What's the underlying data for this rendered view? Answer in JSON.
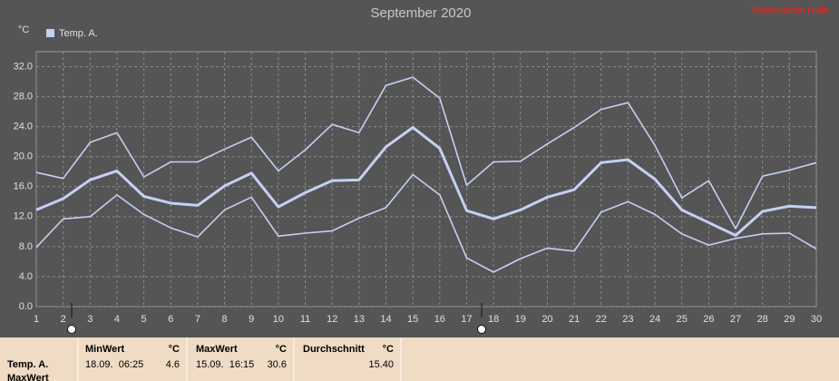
{
  "chart_data": {
    "type": "line",
    "title": "September 2020",
    "station": "Wetterstation Halle",
    "y_unit": "°C",
    "legend": "Temp. A.",
    "x": [
      1,
      2,
      3,
      4,
      5,
      6,
      7,
      8,
      9,
      10,
      11,
      12,
      13,
      14,
      15,
      16,
      17,
      18,
      19,
      20,
      21,
      22,
      23,
      24,
      25,
      26,
      27,
      28,
      29,
      30
    ],
    "xlim": [
      1,
      30
    ],
    "xticks": [
      1,
      2,
      3,
      4,
      5,
      6,
      7,
      8,
      9,
      10,
      11,
      12,
      13,
      14,
      15,
      16,
      17,
      18,
      19,
      20,
      21,
      22,
      23,
      24,
      25,
      26,
      27,
      28,
      29,
      30
    ],
    "ylim": [
      0,
      34
    ],
    "yticks": [
      {
        "value": 0,
        "label": "0.0"
      },
      {
        "value": 4,
        "label": "4.0"
      },
      {
        "value": 8,
        "label": "8.0"
      },
      {
        "value": 12,
        "label": "12.0"
      },
      {
        "value": 16,
        "label": "16.0"
      },
      {
        "value": 20,
        "label": "20.0"
      },
      {
        "value": 24,
        "label": "24.0"
      },
      {
        "value": 28,
        "label": "28.0"
      },
      {
        "value": 32,
        "label": "32.0"
      }
    ],
    "grid": true,
    "series": [
      {
        "color": "#c4d0f4",
        "width": 1.6,
        "values": [
          17.9,
          17.1,
          21.9,
          23.2,
          17.3,
          19.3,
          19.3,
          21.0,
          22.6,
          18.1,
          20.9,
          24.3,
          23.2,
          29.5,
          30.6,
          27.8,
          16.2,
          19.3,
          19.4,
          21.7,
          23.9,
          26.3,
          27.2,
          21.5,
          14.5,
          16.8,
          10.4,
          17.4,
          18.2,
          19.2
        ]
      },
      {
        "color": "#c4d0f4",
        "width": 3,
        "values": [
          12.9,
          14.4,
          16.9,
          18.1,
          14.7,
          13.8,
          13.5,
          16.1,
          17.8,
          13.3,
          15.2,
          16.8,
          16.9,
          21.3,
          23.9,
          21.1,
          12.8,
          11.7,
          12.9,
          14.6,
          15.6,
          19.2,
          19.6,
          17.0,
          12.9,
          11.2,
          9.5,
          12.7,
          13.4,
          13.2
        ]
      },
      {
        "color": "#c4d0f4",
        "width": 1.6,
        "values": [
          7.9,
          11.7,
          12.0,
          14.9,
          12.3,
          10.5,
          9.3,
          12.9,
          14.6,
          9.4,
          9.8,
          10.1,
          11.8,
          13.2,
          17.6,
          14.9,
          6.5,
          4.6,
          6.4,
          7.8,
          7.4,
          12.6,
          14.0,
          12.3,
          9.7,
          8.2,
          9.1,
          9.7,
          9.8,
          7.7
        ]
      }
    ]
  },
  "table": {
    "row_label": "Temp. A.",
    "row_label_2": "MaxWert",
    "columns": [
      {
        "header": "MinWert",
        "unit": "°C",
        "time": "18.09.  06:25",
        "value": "4.6"
      },
      {
        "header": "MaxWert",
        "unit": "°C",
        "time": "15.09.  16:15",
        "value": "30.6"
      },
      {
        "header": "Durchschnitt",
        "unit": "°C",
        "time": "",
        "value": "15.40"
      }
    ]
  }
}
